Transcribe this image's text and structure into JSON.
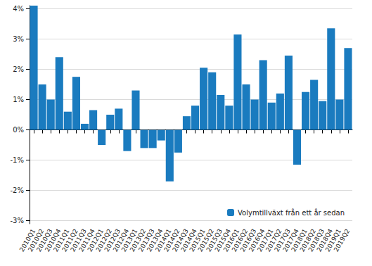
{
  "chart_data": {
    "type": "bar",
    "categories": [
      "2010Q1",
      "2010Q2",
      "2010Q3",
      "2010Q4",
      "2011Q1",
      "2011Q2",
      "2011Q3",
      "2011Q4",
      "2012Q1",
      "2012Q2",
      "2012Q3",
      "2012Q4",
      "2013Q1",
      "2013Q2",
      "2013Q3",
      "2013Q4",
      "2014Q1",
      "2014Q2",
      "2014Q3",
      "2014Q4",
      "2015Q1",
      "2015Q2",
      "2015Q3",
      "2015Q4",
      "2016Q1",
      "2016Q2",
      "2016Q3",
      "2016Q4",
      "2017Q1",
      "2017Q2",
      "2017Q3",
      "2017Q4",
      "2018Q1",
      "2018Q2",
      "2018Q3",
      "2018Q4",
      "2019Q1",
      "2019Q2"
    ],
    "series": [
      {
        "name": "Volymtillväxt från ett år sedan",
        "color": "#1a7bbf",
        "values": [
          4.1,
          1.5,
          1.0,
          2.4,
          0.6,
          1.75,
          0.2,
          0.65,
          -0.5,
          0.5,
          0.7,
          -0.7,
          1.3,
          -0.6,
          -0.6,
          -0.35,
          -1.7,
          -0.75,
          0.45,
          0.8,
          2.05,
          1.9,
          1.15,
          0.8,
          3.15,
          1.5,
          1.0,
          2.3,
          0.9,
          1.2,
          2.45,
          -1.15,
          1.25,
          1.65,
          0.95,
          3.35,
          1.0,
          2.7
        ]
      }
    ],
    "ylim": [
      -3.1,
      4.1
    ],
    "yticks": [
      {
        "value": -3,
        "label": "-3%"
      },
      {
        "value": -2,
        "label": "-2%"
      },
      {
        "value": -1,
        "label": "-1%"
      },
      {
        "value": 0,
        "label": "0%"
      },
      {
        "value": 1,
        "label": "1%"
      },
      {
        "value": 2,
        "label": "2%"
      },
      {
        "value": 3,
        "label": "3%"
      },
      {
        "value": 4,
        "label": "4%"
      }
    ],
    "grid": true,
    "legend": "lower right"
  }
}
